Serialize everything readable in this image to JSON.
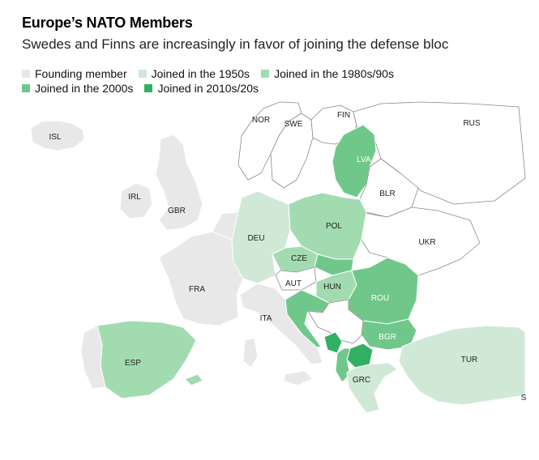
{
  "header": {
    "title": "Europe’s NATO Members",
    "subtitle": "Swedes and Finns are increasingly in favor of joining the defense bloc"
  },
  "legend": [
    {
      "label": "Founding member",
      "color": "#e8e8e8"
    },
    {
      "label": "Joined in the 1950s",
      "color": "#cfe9d6"
    },
    {
      "label": "Joined in the 1980s/90s",
      "color": "#a3dbb1"
    },
    {
      "label": "Joined in the 2000s",
      "color": "#6fc88a"
    },
    {
      "label": "Joined in 2010s/20s",
      "color": "#31b064"
    }
  ],
  "map_labels": {
    "isl": "ISL",
    "nor": "NOR",
    "swe": "SWE",
    "fin": "FIN",
    "rus": "RUS",
    "irl": "IRL",
    "gbr": "GBR",
    "lva": "LVA",
    "blr": "BLR",
    "deu": "DEU",
    "pol": "POL",
    "ukr": "UKR",
    "cze": "CZE",
    "fra": "FRA",
    "aut": "AUT",
    "hun": "HUN",
    "rou": "ROU",
    "ita": "ITA",
    "bgr": "BGR",
    "esp": "ESP",
    "tur": "TUR",
    "grc": "GRC",
    "s_edge": "S"
  }
}
